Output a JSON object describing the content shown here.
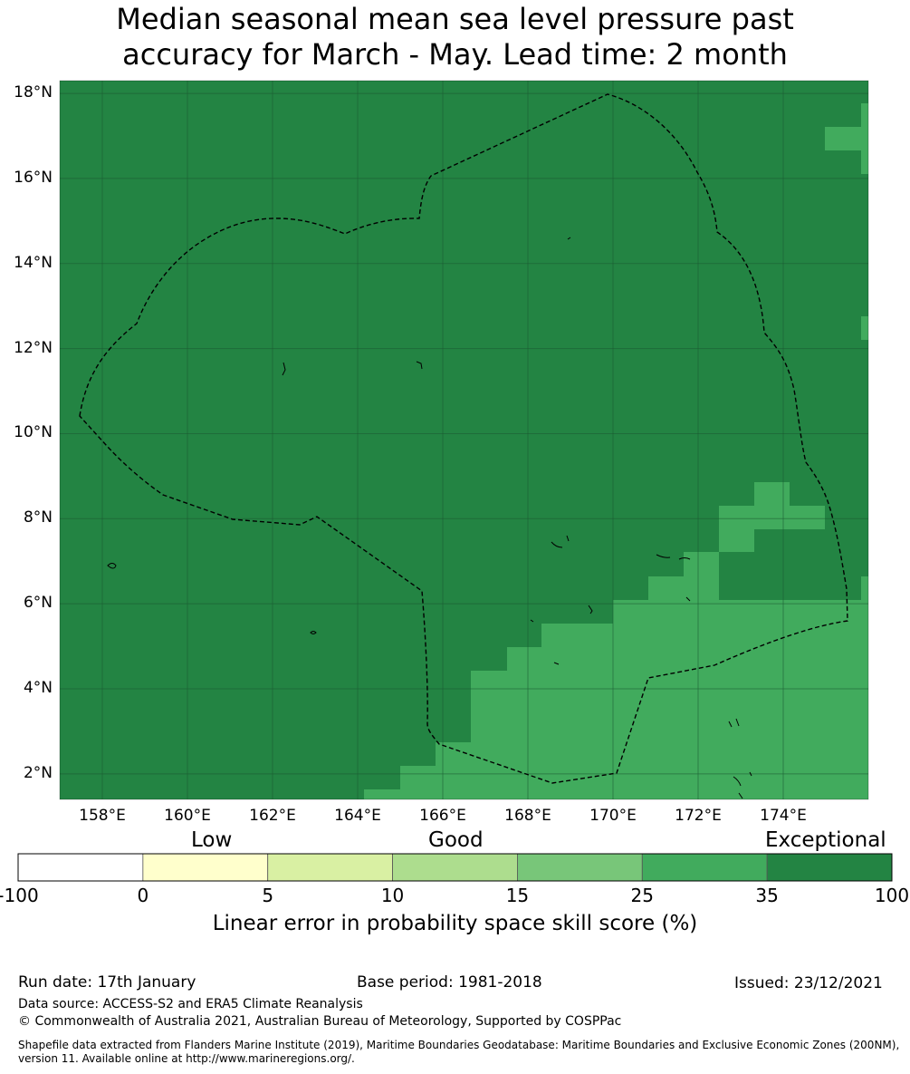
{
  "title": {
    "line1": "Median seasonal mean sea level pressure past",
    "line2": "accuracy for March - May. Lead time: 2 month"
  },
  "map": {
    "lon_range": [
      157,
      176
    ],
    "lat_range": [
      1.4,
      18.3
    ],
    "lat_labels": [
      "18°N",
      "16°N",
      "14°N",
      "12°N",
      "10°N",
      "8°N",
      "6°N",
      "4°N",
      "2°N"
    ],
    "lon_labels": [
      "158°E",
      "160°E",
      "162°E",
      "164°E",
      "166°E",
      "168°E",
      "170°E",
      "172°E",
      "174°E"
    ],
    "base_category": "35-100",
    "colors": {
      "dark_green": "#238443",
      "medium_green": "#41ab5d",
      "grid": "#1f5f35",
      "boundary": "#000000"
    }
  },
  "colorbar": {
    "categories": {
      "low": "Low",
      "good": "Good",
      "exceptional": "Exceptional"
    },
    "ticks": [
      "-100",
      "0",
      "5",
      "10",
      "15",
      "25",
      "35",
      "100"
    ],
    "colors": [
      "#ffffff",
      "#ffffcc",
      "#d9f0a3",
      "#addd8e",
      "#78c679",
      "#41ab5d",
      "#238443"
    ],
    "label": "Linear error in probability space skill score (%)"
  },
  "footer": {
    "run_date": "Run date: 17th January",
    "base_period": "Base period: 1981-2018",
    "issued": "Issued: 23/12/2021",
    "data_source": "Data source: ACCESS-S2 and ERA5 Climate Reanalysis",
    "copyright": "© Commonwealth of Australia 2021, Australian Bureau of Meteorology, Supported by COSPPac",
    "shapefile_line1": "Shapefile data extracted from Flanders Marine Institute (2019), Maritime Boundaries Geodatabase: Maritime Boundaries and Exclusive Economic Zones (200NM),",
    "shapefile_line2": "version 11. Available online at http://www.marineregions.org/."
  }
}
